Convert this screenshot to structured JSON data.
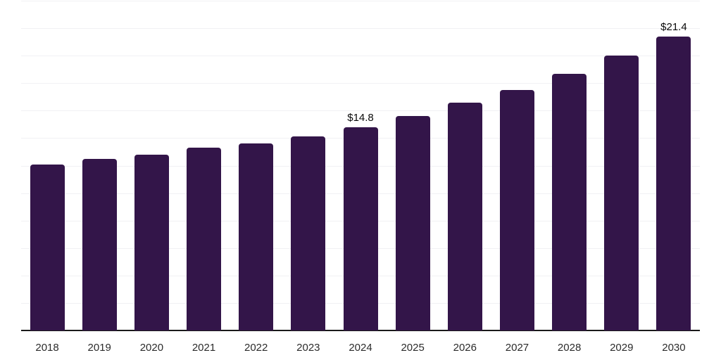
{
  "chart_data": {
    "type": "bar",
    "title": "",
    "xlabel": "",
    "ylabel": "",
    "categories": [
      "2018",
      "2019",
      "2020",
      "2021",
      "2022",
      "2023",
      "2024",
      "2025",
      "2026",
      "2027",
      "2028",
      "2029",
      "2030"
    ],
    "values": [
      12.1,
      12.5,
      12.8,
      13.3,
      13.6,
      14.1,
      14.8,
      15.6,
      16.6,
      17.5,
      18.7,
      20.0,
      21.4
    ],
    "point_labels": [
      "",
      "",
      "",
      "",
      "",
      "",
      "$14.8",
      "",
      "",
      "",
      "",
      "",
      "$21.4"
    ],
    "value_prefix": "$",
    "ylim": [
      0,
      24
    ],
    "grid": true,
    "gridline_step": 2,
    "y_axis_labels_visible": false,
    "legend": "none",
    "colors": {
      "bar": "#331549",
      "gridline": "#f1f1f4",
      "axis_line": "#1a1a1a",
      "tick_label": "#2b2b2b",
      "data_label": "#0a0a0a",
      "background": "#ffffff"
    }
  }
}
